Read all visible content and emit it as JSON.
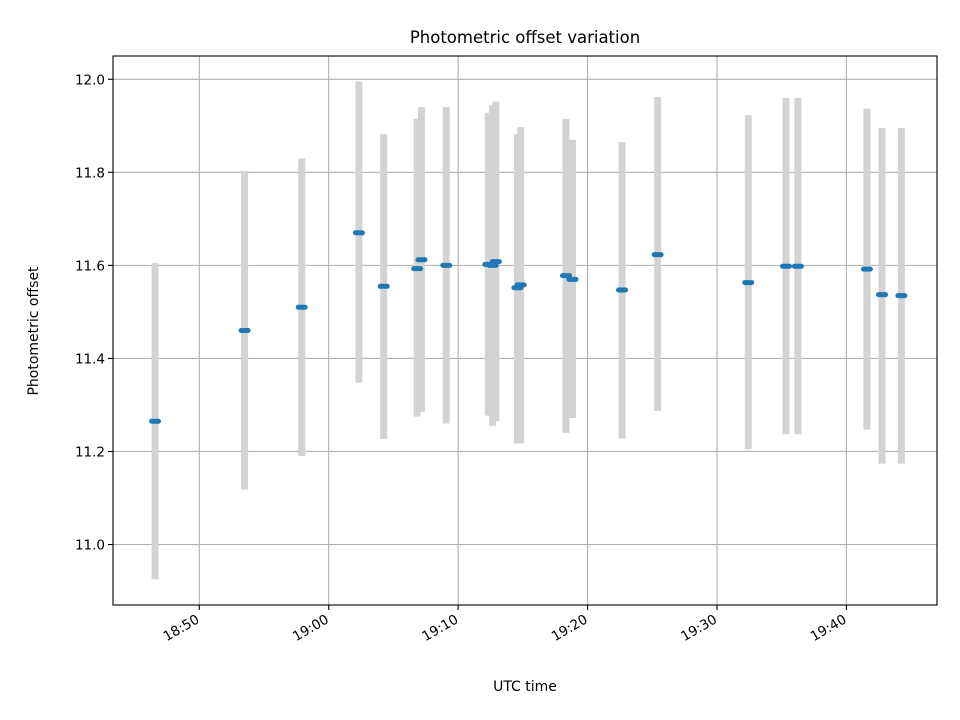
{
  "chart_data": {
    "type": "scatter",
    "title": "Photometric offset variation",
    "xlabel": "UTC time",
    "ylabel": "Photometric offset",
    "xlim": [
      "18:43:20",
      "19:47:00"
    ],
    "ylim": [
      10.87,
      12.05
    ],
    "x_ticks": [
      "18:50",
      "19:00",
      "19:10",
      "19:20",
      "19:30",
      "19:40"
    ],
    "y_ticks": [
      "11.0",
      "11.2",
      "11.4",
      "11.6",
      "11.8",
      "12.0"
    ],
    "grid": true,
    "colors": {
      "point": "#1f77b4",
      "errorbar": "#d3d3d3",
      "grid": "#b0b0b0"
    },
    "series": [
      {
        "points": [
          {
            "time": "18:46:35",
            "y": 11.265,
            "ylow": 10.925,
            "yhigh": 11.605
          },
          {
            "time": "18:53:30",
            "y": 11.46,
            "ylow": 11.118,
            "yhigh": 11.803
          },
          {
            "time": "18:57:55",
            "y": 11.51,
            "ylow": 11.19,
            "yhigh": 11.83
          },
          {
            "time": "19:02:20",
            "y": 11.67,
            "ylow": 11.348,
            "yhigh": 11.995
          },
          {
            "time": "19:04:15",
            "y": 11.555,
            "ylow": 11.227,
            "yhigh": 11.882
          },
          {
            "time": "19:06:50",
            "y": 11.593,
            "ylow": 11.275,
            "yhigh": 11.915
          },
          {
            "time": "19:07:10",
            "y": 11.612,
            "ylow": 11.285,
            "yhigh": 11.94
          },
          {
            "time": "19:09:05",
            "y": 11.6,
            "ylow": 11.26,
            "yhigh": 11.94
          },
          {
            "time": "19:12:20",
            "y": 11.602,
            "ylow": 11.277,
            "yhigh": 11.928
          },
          {
            "time": "19:12:40",
            "y": 11.6,
            "ylow": 11.255,
            "yhigh": 11.945
          },
          {
            "time": "19:12:55",
            "y": 11.608,
            "ylow": 11.265,
            "yhigh": 11.952
          },
          {
            "time": "19:14:35",
            "y": 11.552,
            "ylow": 11.217,
            "yhigh": 11.882
          },
          {
            "time": "19:14:50",
            "y": 11.558,
            "ylow": 11.217,
            "yhigh": 11.897
          },
          {
            "time": "19:18:20",
            "y": 11.578,
            "ylow": 11.24,
            "yhigh": 11.915
          },
          {
            "time": "19:18:50",
            "y": 11.57,
            "ylow": 11.272,
            "yhigh": 11.87
          },
          {
            "time": "19:22:40",
            "y": 11.547,
            "ylow": 11.228,
            "yhigh": 11.865
          },
          {
            "time": "19:25:25",
            "y": 11.623,
            "ylow": 11.287,
            "yhigh": 11.962
          },
          {
            "time": "19:32:25",
            "y": 11.563,
            "ylow": 11.205,
            "yhigh": 11.923
          },
          {
            "time": "19:35:20",
            "y": 11.598,
            "ylow": 11.237,
            "yhigh": 11.96
          },
          {
            "time": "19:36:15",
            "y": 11.598,
            "ylow": 11.237,
            "yhigh": 11.96
          },
          {
            "time": "19:41:35",
            "y": 11.592,
            "ylow": 11.247,
            "yhigh": 11.937
          },
          {
            "time": "19:42:45",
            "y": 11.537,
            "ylow": 11.174,
            "yhigh": 11.895
          },
          {
            "time": "19:44:15",
            "y": 11.535,
            "ylow": 11.174,
            "yhigh": 11.895
          }
        ]
      }
    ]
  }
}
